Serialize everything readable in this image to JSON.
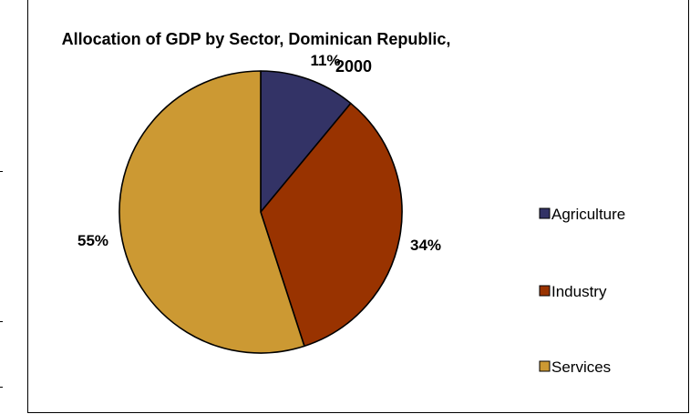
{
  "chart_data": {
    "type": "pie",
    "title_line1": "Allocation of GDP by Sector, Dominican Republic,",
    "title_line2": "2000",
    "start_angle_deg": 0,
    "direction": "clockwise",
    "legend_position": "right",
    "slices": [
      {
        "label": "Agriculture",
        "value": 11,
        "display": "11%",
        "color": "#333366"
      },
      {
        "label": "Industry",
        "value": 34,
        "display": "34%",
        "color": "#993300"
      },
      {
        "label": "Services",
        "value": 55,
        "display": "55%",
        "color": "#CC9933"
      }
    ]
  }
}
